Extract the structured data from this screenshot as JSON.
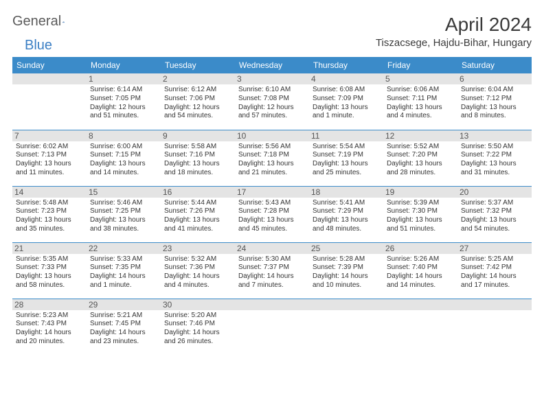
{
  "brand": {
    "part1": "General",
    "part2": "Blue"
  },
  "title": "April 2024",
  "location": "Tiszacsege, Hajdu-Bihar, Hungary",
  "colors": {
    "header_bg": "#3b8bc9",
    "header_text": "#ffffff",
    "daynum_bg": "#e4e4e4",
    "daynum_text": "#555555",
    "body_text": "#333333",
    "rule": "#3b8bc9",
    "brand_gray": "#5a5a5a",
    "brand_blue": "#3b7fc4"
  },
  "day_headers": [
    "Sunday",
    "Monday",
    "Tuesday",
    "Wednesday",
    "Thursday",
    "Friday",
    "Saturday"
  ],
  "weeks": [
    [
      {
        "n": "",
        "lines": []
      },
      {
        "n": "1",
        "lines": [
          "Sunrise: 6:14 AM",
          "Sunset: 7:05 PM",
          "Daylight: 12 hours and 51 minutes."
        ]
      },
      {
        "n": "2",
        "lines": [
          "Sunrise: 6:12 AM",
          "Sunset: 7:06 PM",
          "Daylight: 12 hours and 54 minutes."
        ]
      },
      {
        "n": "3",
        "lines": [
          "Sunrise: 6:10 AM",
          "Sunset: 7:08 PM",
          "Daylight: 12 hours and 57 minutes."
        ]
      },
      {
        "n": "4",
        "lines": [
          "Sunrise: 6:08 AM",
          "Sunset: 7:09 PM",
          "Daylight: 13 hours and 1 minute."
        ]
      },
      {
        "n": "5",
        "lines": [
          "Sunrise: 6:06 AM",
          "Sunset: 7:11 PM",
          "Daylight: 13 hours and 4 minutes."
        ]
      },
      {
        "n": "6",
        "lines": [
          "Sunrise: 6:04 AM",
          "Sunset: 7:12 PM",
          "Daylight: 13 hours and 8 minutes."
        ]
      }
    ],
    [
      {
        "n": "7",
        "lines": [
          "Sunrise: 6:02 AM",
          "Sunset: 7:13 PM",
          "Daylight: 13 hours and 11 minutes."
        ]
      },
      {
        "n": "8",
        "lines": [
          "Sunrise: 6:00 AM",
          "Sunset: 7:15 PM",
          "Daylight: 13 hours and 14 minutes."
        ]
      },
      {
        "n": "9",
        "lines": [
          "Sunrise: 5:58 AM",
          "Sunset: 7:16 PM",
          "Daylight: 13 hours and 18 minutes."
        ]
      },
      {
        "n": "10",
        "lines": [
          "Sunrise: 5:56 AM",
          "Sunset: 7:18 PM",
          "Daylight: 13 hours and 21 minutes."
        ]
      },
      {
        "n": "11",
        "lines": [
          "Sunrise: 5:54 AM",
          "Sunset: 7:19 PM",
          "Daylight: 13 hours and 25 minutes."
        ]
      },
      {
        "n": "12",
        "lines": [
          "Sunrise: 5:52 AM",
          "Sunset: 7:20 PM",
          "Daylight: 13 hours and 28 minutes."
        ]
      },
      {
        "n": "13",
        "lines": [
          "Sunrise: 5:50 AM",
          "Sunset: 7:22 PM",
          "Daylight: 13 hours and 31 minutes."
        ]
      }
    ],
    [
      {
        "n": "14",
        "lines": [
          "Sunrise: 5:48 AM",
          "Sunset: 7:23 PM",
          "Daylight: 13 hours and 35 minutes."
        ]
      },
      {
        "n": "15",
        "lines": [
          "Sunrise: 5:46 AM",
          "Sunset: 7:25 PM",
          "Daylight: 13 hours and 38 minutes."
        ]
      },
      {
        "n": "16",
        "lines": [
          "Sunrise: 5:44 AM",
          "Sunset: 7:26 PM",
          "Daylight: 13 hours and 41 minutes."
        ]
      },
      {
        "n": "17",
        "lines": [
          "Sunrise: 5:43 AM",
          "Sunset: 7:28 PM",
          "Daylight: 13 hours and 45 minutes."
        ]
      },
      {
        "n": "18",
        "lines": [
          "Sunrise: 5:41 AM",
          "Sunset: 7:29 PM",
          "Daylight: 13 hours and 48 minutes."
        ]
      },
      {
        "n": "19",
        "lines": [
          "Sunrise: 5:39 AM",
          "Sunset: 7:30 PM",
          "Daylight: 13 hours and 51 minutes."
        ]
      },
      {
        "n": "20",
        "lines": [
          "Sunrise: 5:37 AM",
          "Sunset: 7:32 PM",
          "Daylight: 13 hours and 54 minutes."
        ]
      }
    ],
    [
      {
        "n": "21",
        "lines": [
          "Sunrise: 5:35 AM",
          "Sunset: 7:33 PM",
          "Daylight: 13 hours and 58 minutes."
        ]
      },
      {
        "n": "22",
        "lines": [
          "Sunrise: 5:33 AM",
          "Sunset: 7:35 PM",
          "Daylight: 14 hours and 1 minute."
        ]
      },
      {
        "n": "23",
        "lines": [
          "Sunrise: 5:32 AM",
          "Sunset: 7:36 PM",
          "Daylight: 14 hours and 4 minutes."
        ]
      },
      {
        "n": "24",
        "lines": [
          "Sunrise: 5:30 AM",
          "Sunset: 7:37 PM",
          "Daylight: 14 hours and 7 minutes."
        ]
      },
      {
        "n": "25",
        "lines": [
          "Sunrise: 5:28 AM",
          "Sunset: 7:39 PM",
          "Daylight: 14 hours and 10 minutes."
        ]
      },
      {
        "n": "26",
        "lines": [
          "Sunrise: 5:26 AM",
          "Sunset: 7:40 PM",
          "Daylight: 14 hours and 14 minutes."
        ]
      },
      {
        "n": "27",
        "lines": [
          "Sunrise: 5:25 AM",
          "Sunset: 7:42 PM",
          "Daylight: 14 hours and 17 minutes."
        ]
      }
    ],
    [
      {
        "n": "28",
        "lines": [
          "Sunrise: 5:23 AM",
          "Sunset: 7:43 PM",
          "Daylight: 14 hours and 20 minutes."
        ]
      },
      {
        "n": "29",
        "lines": [
          "Sunrise: 5:21 AM",
          "Sunset: 7:45 PM",
          "Daylight: 14 hours and 23 minutes."
        ]
      },
      {
        "n": "30",
        "lines": [
          "Sunrise: 5:20 AM",
          "Sunset: 7:46 PM",
          "Daylight: 14 hours and 26 minutes."
        ]
      },
      {
        "n": "",
        "lines": []
      },
      {
        "n": "",
        "lines": []
      },
      {
        "n": "",
        "lines": []
      },
      {
        "n": "",
        "lines": []
      }
    ]
  ]
}
